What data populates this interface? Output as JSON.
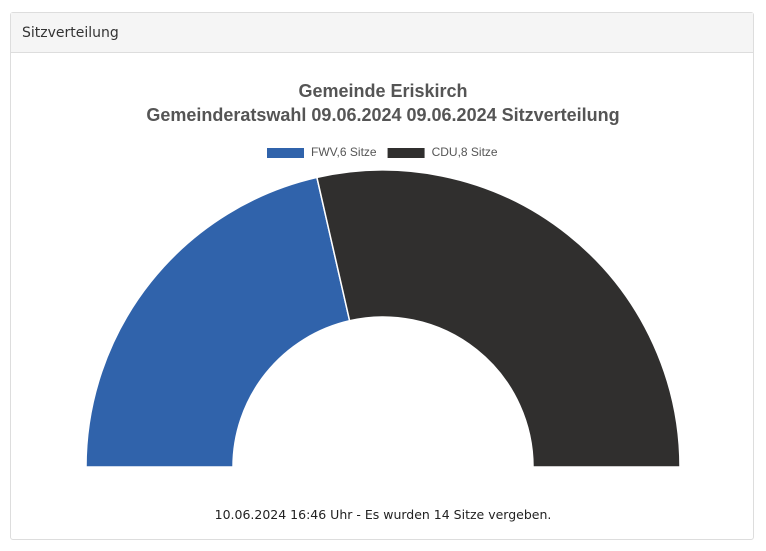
{
  "panel_title": "Sitzverteilung",
  "chart_data": {
    "type": "semidonut",
    "title": "Gemeinde Eriskirch",
    "subtitle": "Gemeinderatswahl 09.06.2024 09.06.2024 Sitzverteilung",
    "categories": [
      "FWV,6 Sitze",
      "CDU,8 Sitze"
    ],
    "values": [
      6,
      8
    ],
    "colors": [
      "#3063ab",
      "#302f2e"
    ],
    "footer": "10.06.2024 16:46 Uhr - Es wurden 14 Sitze vergeben."
  }
}
